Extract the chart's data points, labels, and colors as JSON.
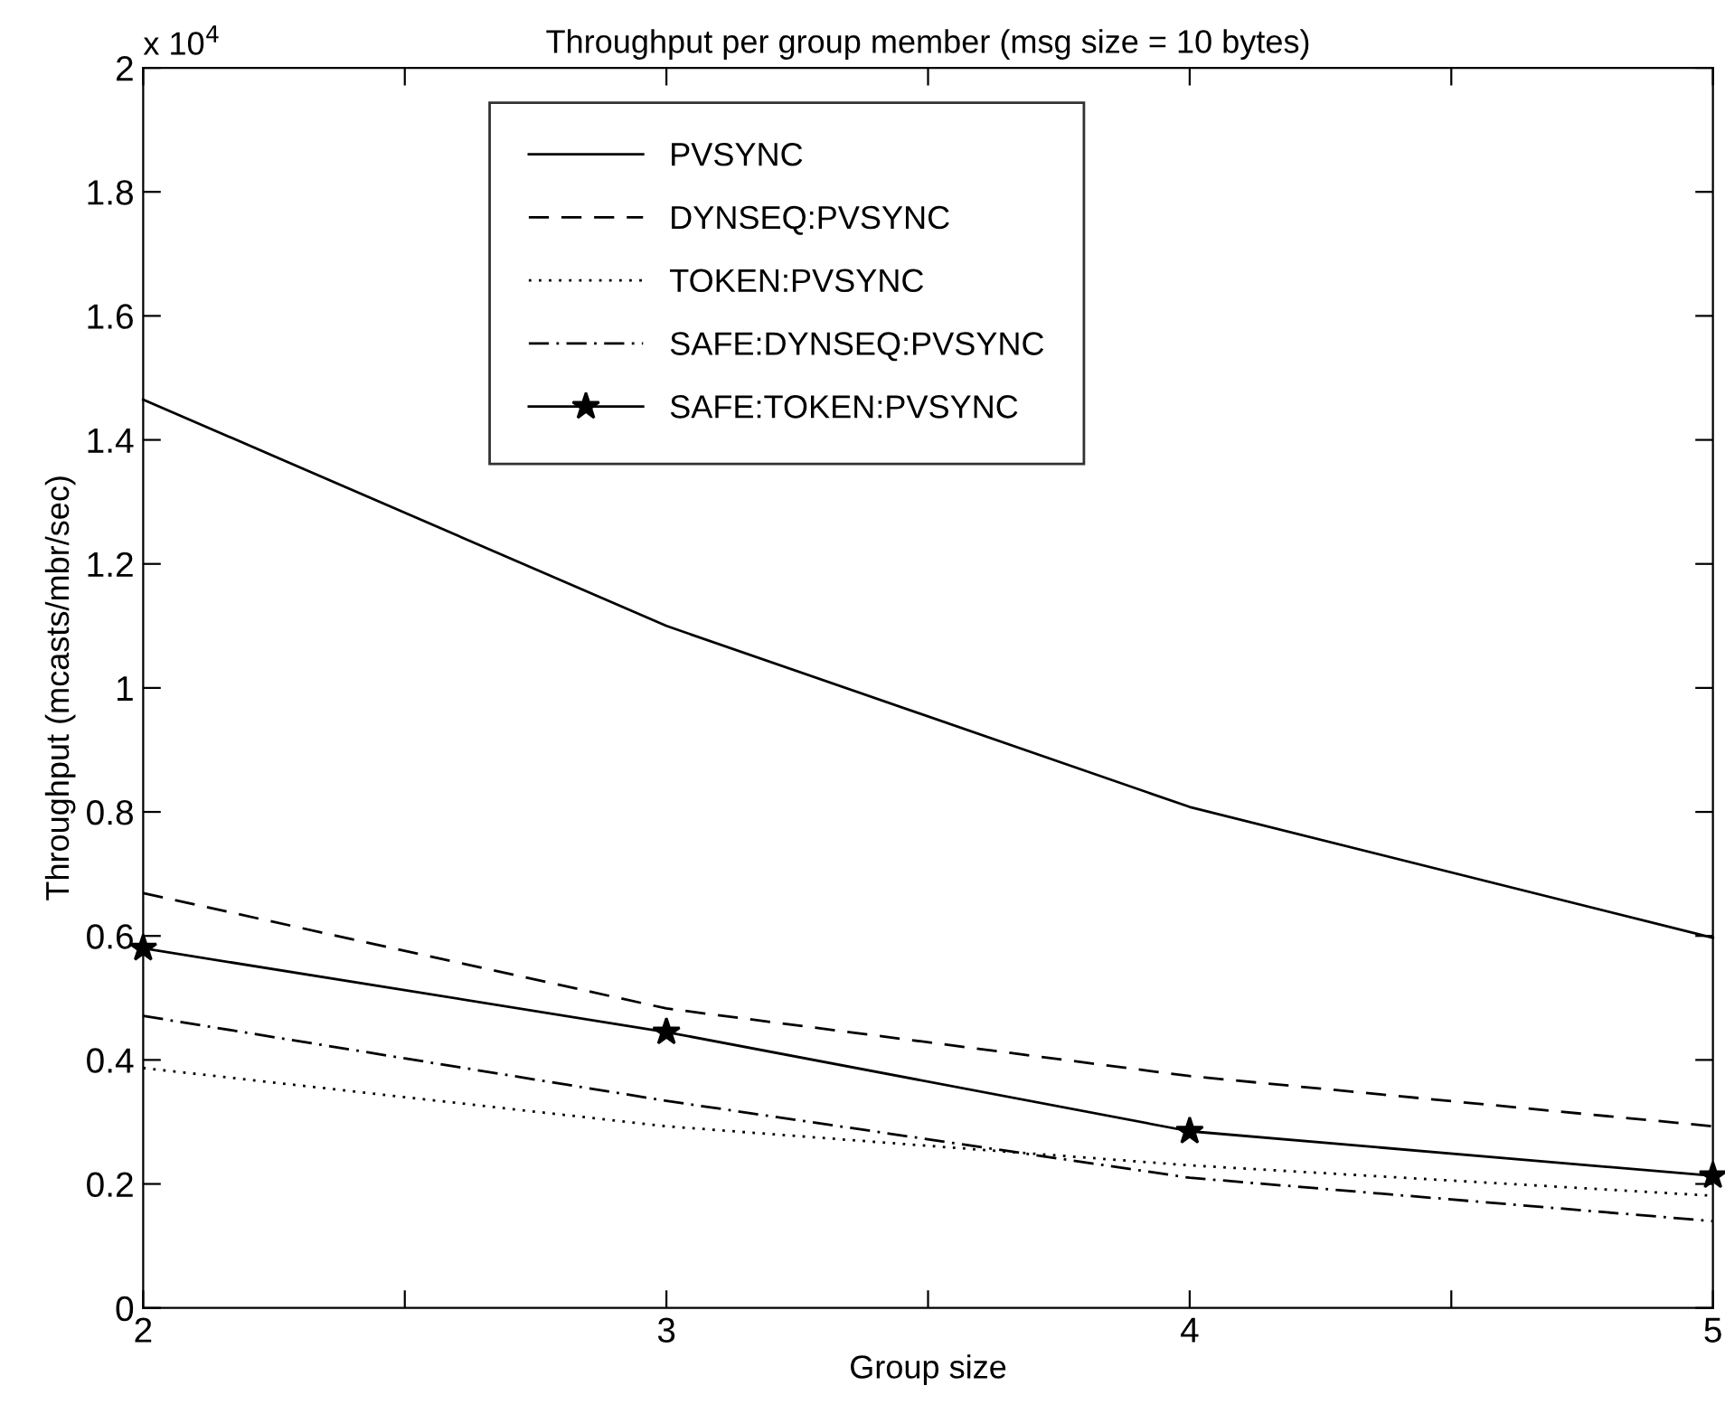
{
  "chart_data": {
    "type": "line",
    "title": "Throughput per group member (msg size = 10 bytes)",
    "xlabel": "Group size",
    "ylabel": "Throughput (mcasts/mbr/sec)",
    "annotations": [
      "x 10$^{4}$"
    ],
    "x": [
      2,
      3,
      4,
      5
    ],
    "series": [
      {
        "name": "PVSYNC",
        "color": "#000000",
        "line_style": "solid",
        "marker": "none",
        "values": [
          1.465,
          1.1,
          0.808,
          0.597
        ]
      },
      {
        "name": "DYNSEQ:PVSYNC",
        "color": "#000000",
        "line_style": "dashed",
        "marker": "none",
        "values": [
          0.669,
          0.483,
          0.374,
          0.293
        ]
      },
      {
        "name": "TOKEN:PVSYNC",
        "color": "#000000",
        "line_style": "dotted",
        "marker": "none",
        "values": [
          0.387,
          0.293,
          0.23,
          0.181
        ]
      },
      {
        "name": "SAFE:DYNSEQ:PVSYNC",
        "color": "#000000",
        "line_style": "dashdot",
        "marker": "none",
        "values": [
          0.471,
          0.334,
          0.21,
          0.14
        ]
      },
      {
        "name": "SAFE:TOKEN:PVSYNC",
        "color": "#000000",
        "line_style": "solid",
        "marker": "star",
        "values": [
          0.58,
          0.445,
          0.285,
          0.213
        ]
      }
    ],
    "xlim": [
      2,
      5
    ],
    "xticks": [
      2,
      {
        "value": 2.5,
        "label": null
      },
      3,
      {
        "value": 3.5,
        "label": null
      },
      4,
      {
        "value": 4.5,
        "label": null
      },
      5
    ],
    "ylim": [
      0,
      2
    ],
    "yticks": [
      0,
      0.2,
      0.4,
      0.6,
      0.8,
      1,
      1.2,
      1.4,
      1.6,
      1.8,
      2
    ],
    "grid": false,
    "legend": "top"
  }
}
